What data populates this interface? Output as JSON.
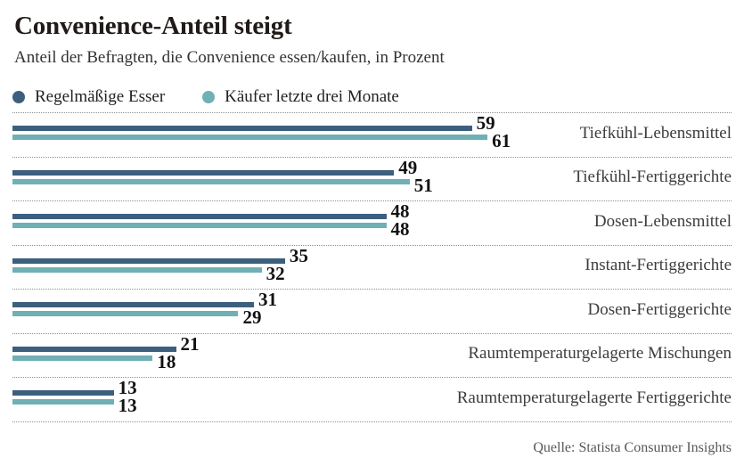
{
  "title": "Convenience-Anteil steigt",
  "subtitle": "Anteil der Befragten, die Convenience essen/kaufen, in Prozent",
  "legend": {
    "items": [
      {
        "label": "Regelmäßige Esser",
        "color": "#3d5f7e"
      },
      {
        "label": "Käufer letzte drei Monate",
        "color": "#6fb0b5"
      }
    ]
  },
  "source": "Quelle: Statista Consumer Insights",
  "colors": {
    "series_dark": "#3d5f7e",
    "series_teal": "#6fb0b5",
    "separator": "#8f8f8f",
    "title_text": "#201b19",
    "category_text": "#3d3d3d",
    "source_text": "#55585a"
  },
  "chart_data": {
    "type": "bar",
    "orientation": "horizontal",
    "title": "Convenience-Anteil steigt",
    "subtitle": "Anteil der Befragten, die Convenience essen/kaufen, in Prozent",
    "unit": "Prozent",
    "xlim": [
      0,
      61
    ],
    "grid": false,
    "legend_position": "top",
    "value_labels": true,
    "categories": [
      "Tiefkühl-Lebensmittel",
      "Tiefkühl-Fertiggerichte",
      "Dosen-Lebensmittel",
      "Instant-Fertiggerichte",
      "Dosen-Fertiggerichte",
      "Raumtemperaturgelagerte Mischungen",
      "Raumtemperaturgelagerte Fertiggerichte"
    ],
    "series": [
      {
        "name": "Regelmäßige Esser",
        "color": "#3d5f7e",
        "values": [
          59,
          49,
          48,
          35,
          31,
          21,
          13
        ]
      },
      {
        "name": "Käufer letzte drei Monate",
        "color": "#6fb0b5",
        "values": [
          61,
          51,
          48,
          32,
          29,
          18,
          13
        ]
      }
    ],
    "source": "Quelle: Statista Consumer Insights"
  }
}
